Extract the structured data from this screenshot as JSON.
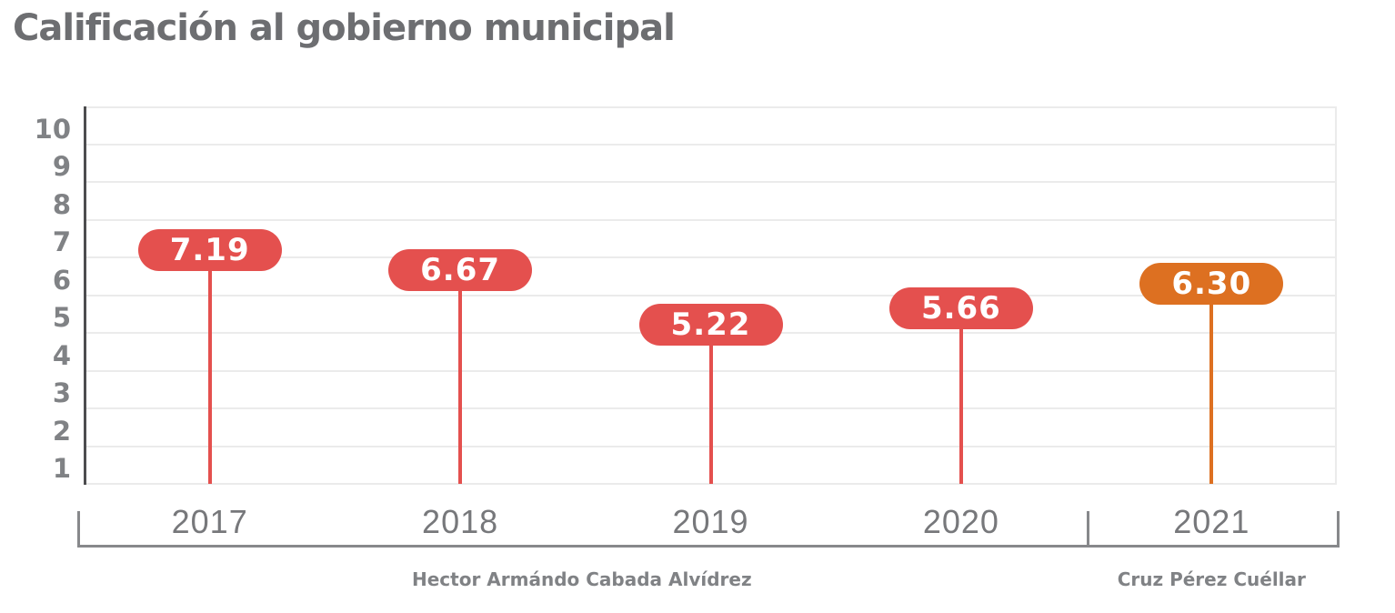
{
  "title": "Calificación al gobierno municipal",
  "colors": {
    "title_text": "#6D6E71",
    "axis_tick_text": "#808285",
    "gridline": "#EBEBEB",
    "axis_line": "#4D4D4F",
    "bracket": "#87888B",
    "year_text": "#77787B",
    "group_text": "#808285",
    "pill_text": "#FFFFFF",
    "red": "#E4504E",
    "orange": "#DD7021"
  },
  "chart_data": {
    "type": "bar",
    "variant": "lollipop-pill-labels",
    "title": "Calificación al gobierno municipal",
    "categories": [
      "2017",
      "2018",
      "2019",
      "2020",
      "2021"
    ],
    "values": [
      7.19,
      6.67,
      5.22,
      5.66,
      6.3
    ],
    "value_labels": [
      "7.19",
      "6.67",
      "5.22",
      "5.66",
      "6.30"
    ],
    "point_colors": [
      "red",
      "red",
      "red",
      "red",
      "orange"
    ],
    "yticks": [
      1,
      2,
      3,
      4,
      5,
      6,
      7,
      8,
      9,
      10
    ],
    "ylim": [
      1,
      11
    ],
    "baseline_value": 1,
    "grid": true,
    "legend": "none",
    "xlabel": "",
    "ylabel": "",
    "groups": [
      {
        "label": "Hector Armándo Cabada Alvídrez",
        "from": 0,
        "to": 3
      },
      {
        "label": "Cruz Pérez Cuéllar",
        "from": 4,
        "to": 4
      }
    ]
  }
}
